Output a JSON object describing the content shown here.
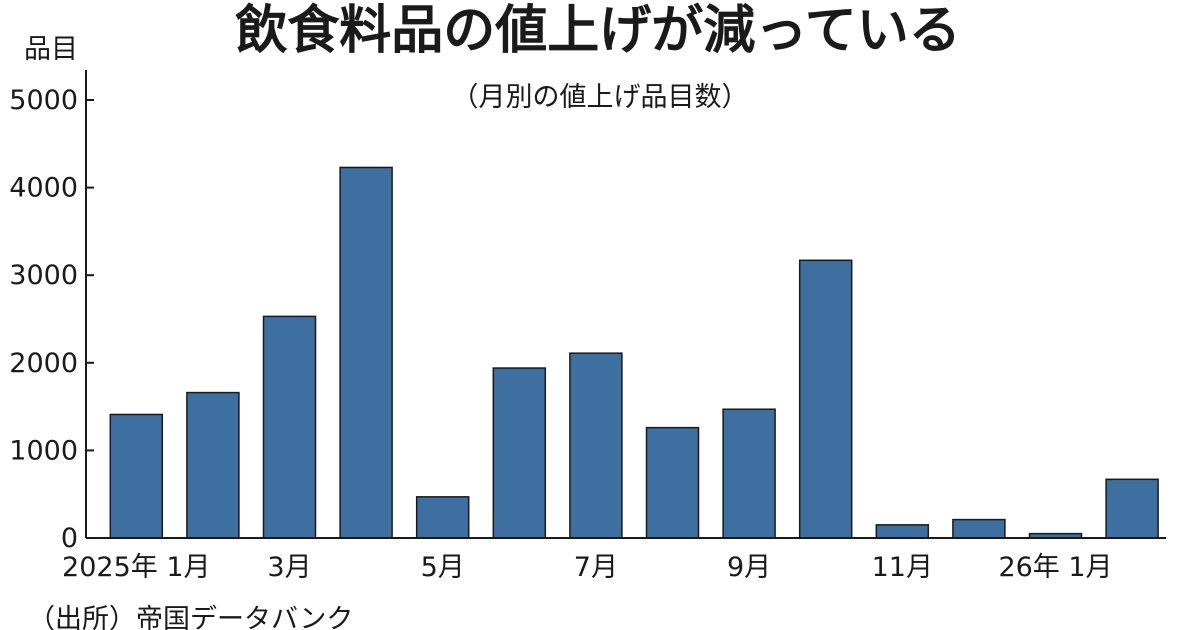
{
  "chart_data": {
    "type": "bar",
    "title": "飲食料品の値上げが減っている",
    "subtitle": "（月別の値上げ品目数）",
    "ylabel": "品目",
    "source": "（出所）帝国データバンク",
    "categories": [
      "2025年1月",
      "2月",
      "3月",
      "4月",
      "5月",
      "6月",
      "7月",
      "8月",
      "9月",
      "10月",
      "11月",
      "12月",
      "26年1月",
      "2月"
    ],
    "x_tick_labels": [
      "2025年 1月",
      "",
      "3月",
      "",
      "5月",
      "",
      "7月",
      "",
      "9月",
      "",
      "11月",
      "",
      "26年 1月",
      ""
    ],
    "values": [
      1410,
      1660,
      2530,
      4230,
      470,
      1940,
      2110,
      1260,
      1470,
      3170,
      150,
      210,
      50,
      670
    ],
    "ylim": [
      0,
      5000
    ],
    "yticks": [
      "0",
      "1000",
      "2000",
      "3000",
      "4000",
      "5000"
    ],
    "ytick_values": [
      0,
      1000,
      2000,
      3000,
      4000,
      5000
    ],
    "grid": false,
    "legend": "none",
    "bar_color": "#3d6fa0"
  }
}
